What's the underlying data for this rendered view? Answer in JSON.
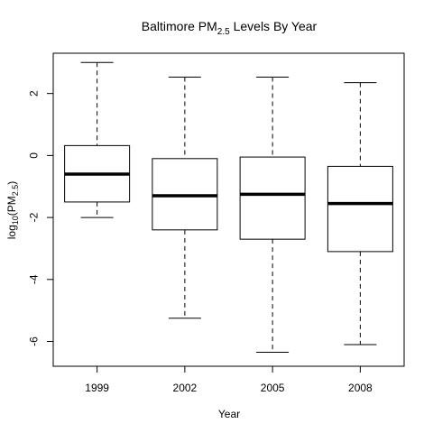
{
  "chart_data": {
    "type": "box",
    "title": {
      "main": "Baltimore PM",
      "sub": "2.5",
      "rest": " Levels By Year"
    },
    "xlabel": "Year",
    "ylabel": {
      "pre": "log",
      "sub1": "10",
      "mid": "(PM",
      "sub2": "2.5",
      "post": ")"
    },
    "ylim": [
      -6.8,
      3.3
    ],
    "yticks": [
      -6,
      -4,
      -2,
      0,
      2
    ],
    "categories": [
      "1999",
      "2002",
      "2005",
      "2008"
    ],
    "boxes": [
      {
        "category": "1999",
        "whisker_low": -2.0,
        "q1": -1.5,
        "median": -0.6,
        "q3": 0.32,
        "whisker_high": 3.0
      },
      {
        "category": "2002",
        "whisker_low": -5.25,
        "q1": -2.4,
        "median": -1.3,
        "q3": -0.1,
        "whisker_high": 2.53
      },
      {
        "category": "2005",
        "whisker_low": -6.35,
        "q1": -2.7,
        "median": -1.25,
        "q3": -0.05,
        "whisker_high": 2.53
      },
      {
        "category": "2008",
        "whisker_low": -6.1,
        "q1": -3.1,
        "median": -1.55,
        "q3": -0.35,
        "whisker_high": 2.35
      }
    ]
  }
}
